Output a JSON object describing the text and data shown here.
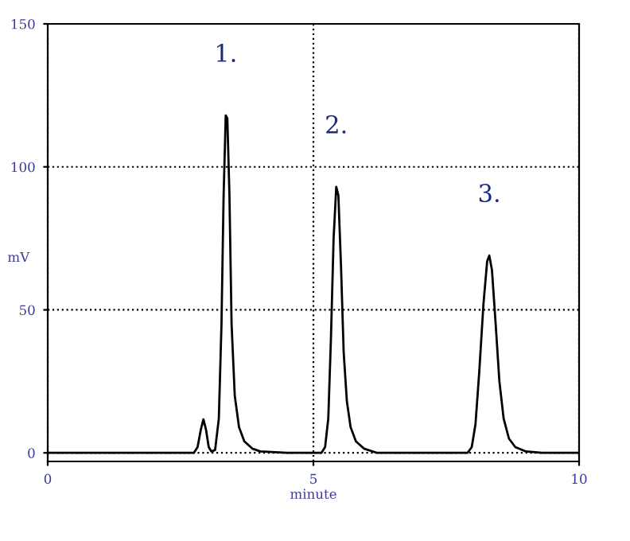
{
  "chart_data": {
    "type": "line",
    "xlabel": "minute",
    "ylabel": "mV",
    "x": [
      0,
      2.75,
      2.82,
      2.88,
      2.93,
      2.98,
      3.03,
      3.08,
      3.15,
      3.22,
      3.27,
      3.31,
      3.35,
      3.38,
      3.42,
      3.46,
      3.52,
      3.6,
      3.7,
      3.85,
      4.0,
      4.5,
      5.15,
      5.22,
      5.28,
      5.33,
      5.38,
      5.43,
      5.47,
      5.52,
      5.57,
      5.63,
      5.7,
      5.8,
      5.95,
      6.2,
      7.9,
      7.98,
      8.05,
      8.12,
      8.2,
      8.27,
      8.31,
      8.36,
      8.43,
      8.5,
      8.58,
      8.68,
      8.8,
      9.0,
      9.3,
      10
    ],
    "series": [
      {
        "color": "#000000",
        "values": [
          0,
          0,
          2,
          8,
          11.7,
          8,
          2,
          0.5,
          1,
          12,
          45,
          90,
          118,
          117,
          90,
          45,
          20,
          9,
          4,
          1.5,
          0.5,
          0,
          0,
          2,
          12,
          40,
          75,
          93,
          90,
          65,
          35,
          18,
          9,
          4,
          1.5,
          0,
          0,
          2,
          10,
          28,
          52,
          67,
          69,
          64,
          45,
          25,
          12,
          5,
          2,
          0.5,
          0,
          0
        ]
      }
    ],
    "xlim": [
      0,
      10
    ],
    "ylim": [
      -3,
      150
    ],
    "xticks": [
      0,
      5,
      10
    ],
    "yticks": [
      0,
      50,
      100,
      150
    ],
    "grid": true,
    "marker": "none",
    "line_style": "solid",
    "annotations": [
      {
        "text": "1.",
        "x": 3.35,
        "y": 118
      },
      {
        "text": "2.",
        "x": 5.43,
        "y": 93
      },
      {
        "text": "3.",
        "x": 8.31,
        "y": 69
      }
    ]
  }
}
